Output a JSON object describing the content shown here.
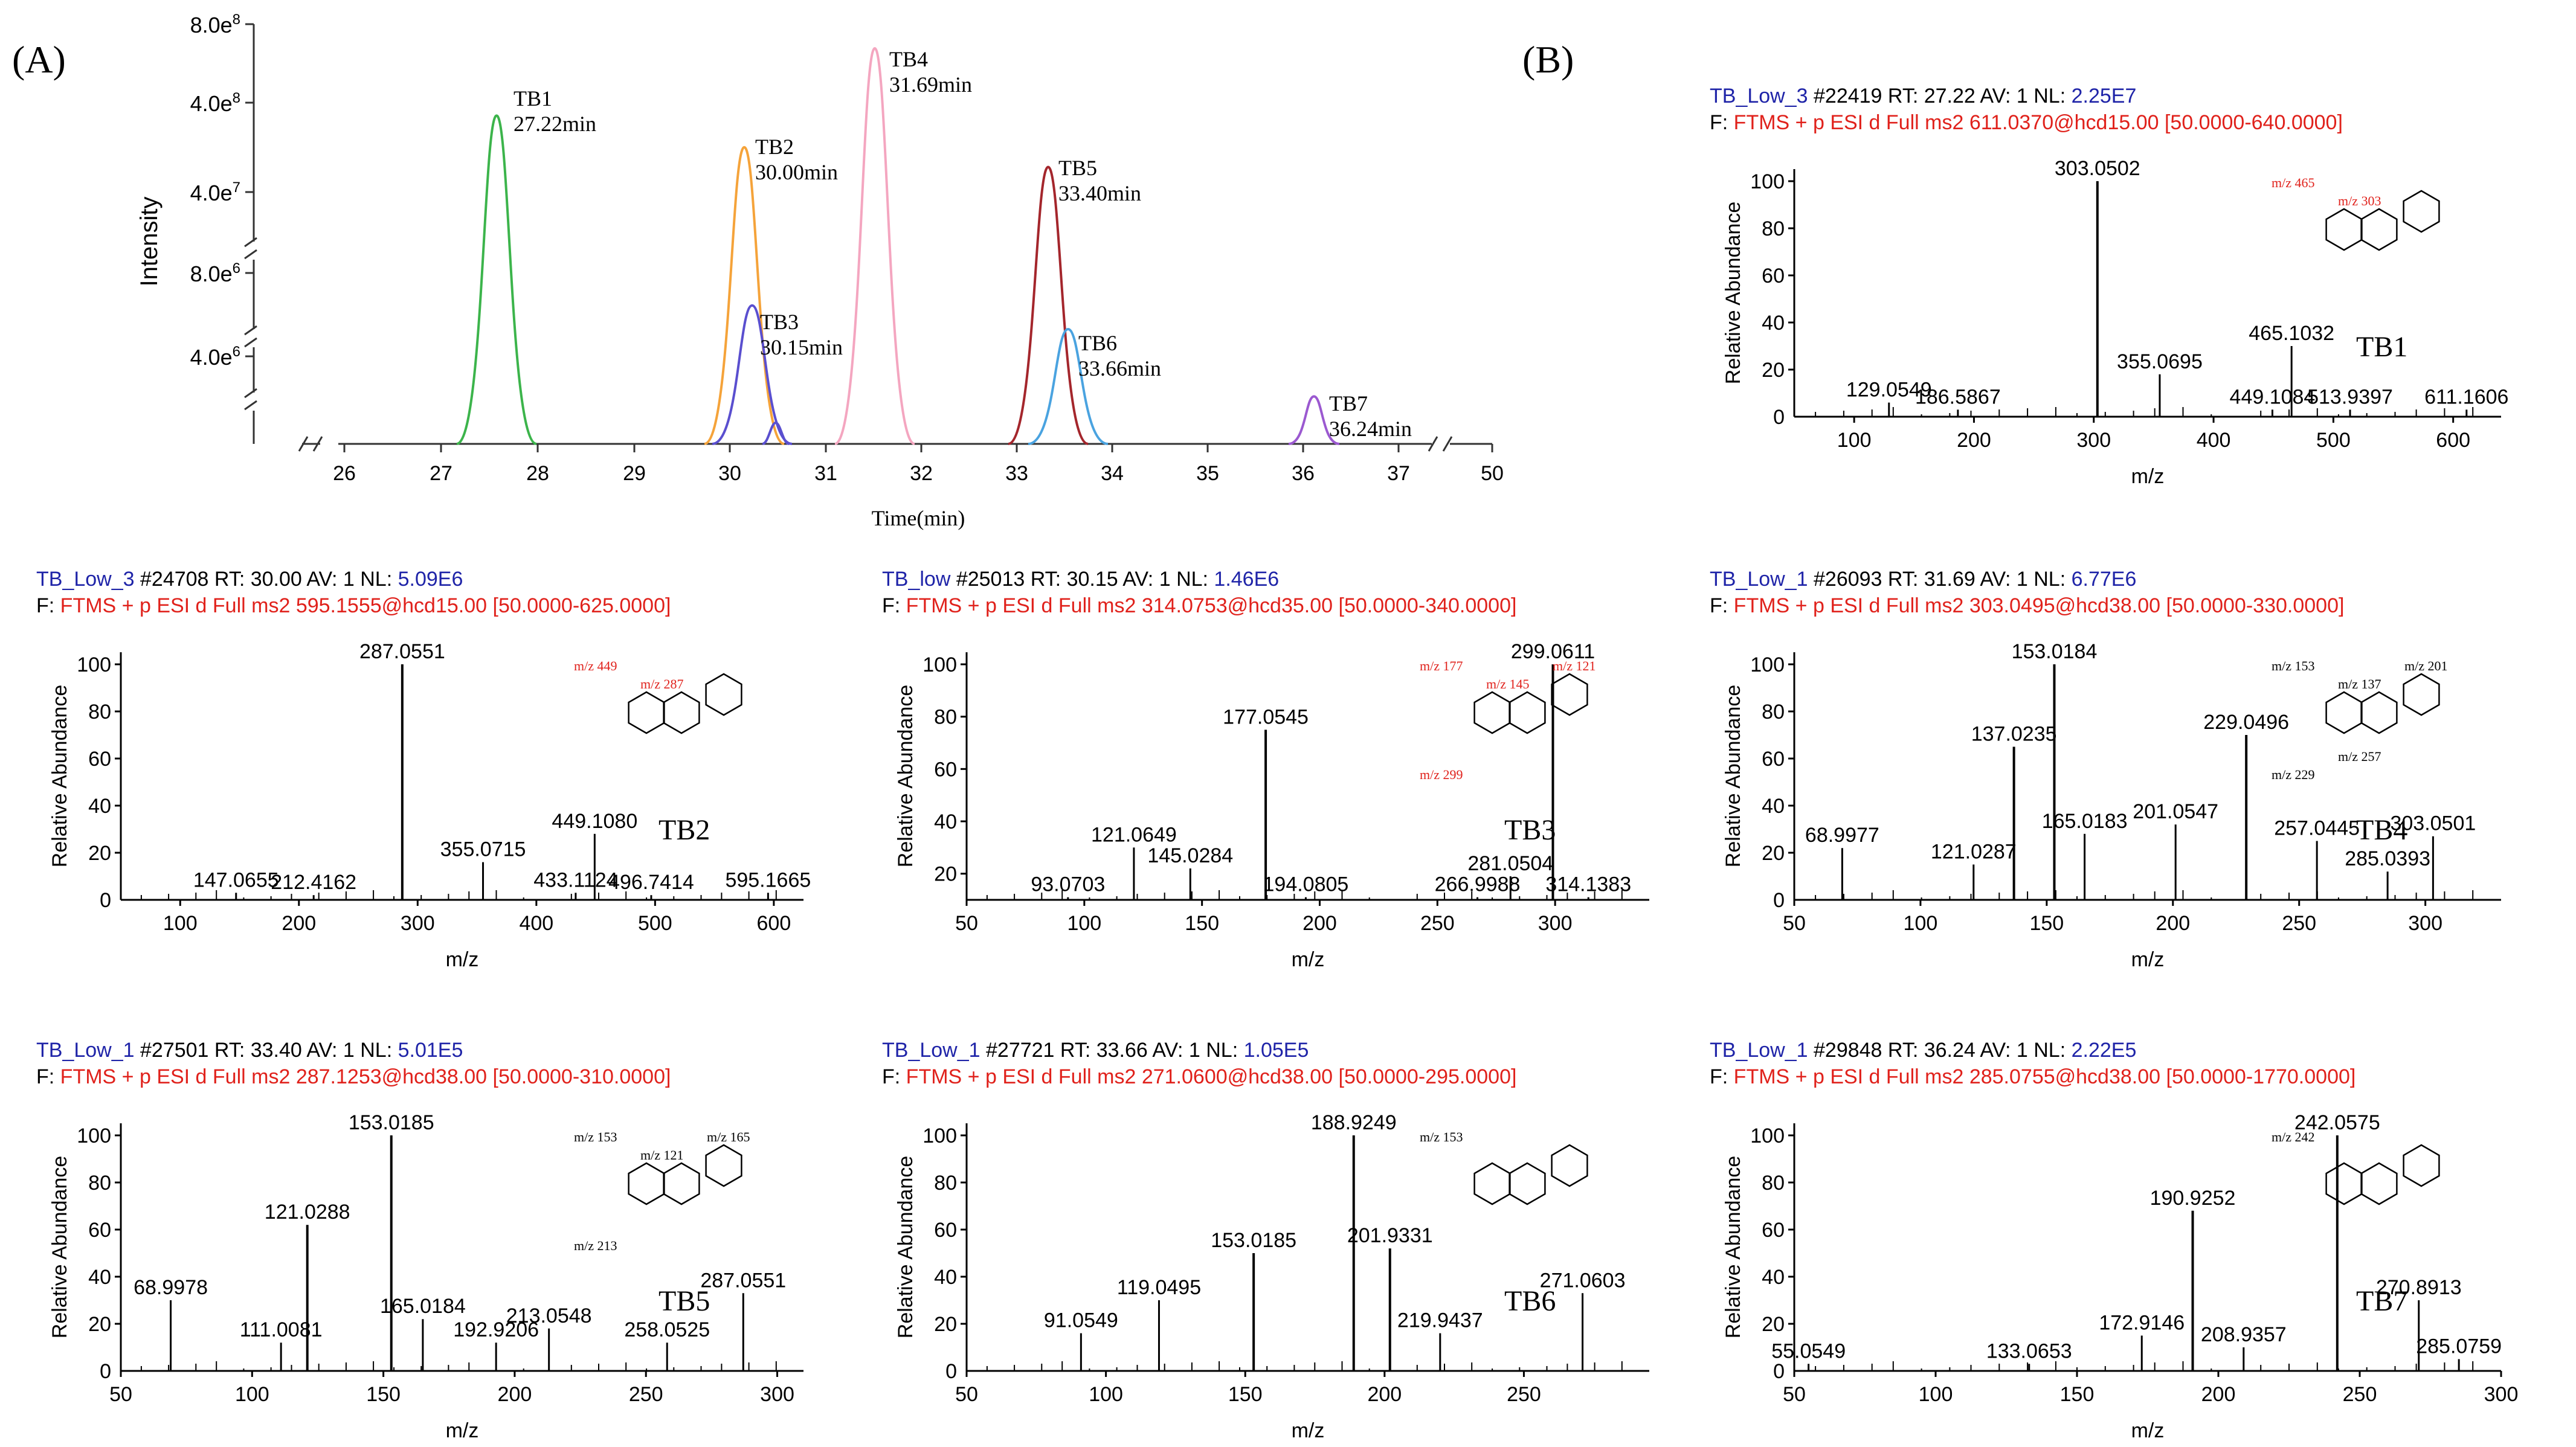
{
  "figure": {
    "panel_a_label": "(A)",
    "panel_b_label": "(B)"
  },
  "chart_data": [
    {
      "id": "A",
      "type": "line",
      "title": "",
      "xlabel": "Time(min)",
      "ylabel": "Intensity",
      "xlim": [
        25.5,
        50
      ],
      "x_ticks": [
        "26",
        "27",
        "28",
        "29",
        "30",
        "31",
        "32",
        "33",
        "34",
        "35",
        "36",
        "37",
        "50"
      ],
      "y_ticks": [
        "8.0e8",
        "4.0e8",
        "4.0e7",
        "8.0e6",
        "4.0e6"
      ],
      "series": [
        {
          "name": "TB1",
          "label_line2": "27.22min",
          "rt": 27.22,
          "peak_level": 0.83,
          "color": "#3cb44b"
        },
        {
          "name": "TB2",
          "label_line2": "30.00min",
          "rt": 30.0,
          "peak_level": 0.75,
          "color": "#f5a33a"
        },
        {
          "name": "TB3",
          "label_line2": "30.15min",
          "rt": 30.15,
          "peak_level": 0.35,
          "color": "#5a4fcf"
        },
        {
          "name": "TB4",
          "label_line2": "31.69min",
          "rt": 31.69,
          "peak_level": 1.0,
          "color": "#f4a6c0"
        },
        {
          "name": "TB5",
          "label_line2": "33.40min",
          "rt": 33.4,
          "peak_level": 0.7,
          "color": "#a4262c"
        },
        {
          "name": "TB6",
          "label_line2": "33.66min",
          "rt": 33.66,
          "peak_level": 0.29,
          "color": "#4aa3e0"
        },
        {
          "name": "TB7",
          "label_line2": "36.24min",
          "rt": 36.24,
          "peak_level": 0.12,
          "color": "#9b59d0"
        }
      ]
    },
    {
      "id": "TB1",
      "type": "bar",
      "compound": "TB1",
      "header_file": "TB_Low_3",
      "header_scan": "#22419",
      "header_rt": "RT: 27.22",
      "header_av": "AV: 1",
      "header_nl_label": "NL:",
      "header_nl": "2.25E7",
      "filter": "F: FTMS + p ESI d Full ms2 611.0370@hcd15.00 [50.0000-640.0000]",
      "xlabel": "m/z",
      "ylabel": "Relative Abundance",
      "xlim": [
        50,
        640
      ],
      "ylim": [
        0,
        100
      ],
      "x_ticks": [
        100,
        200,
        300,
        400,
        500,
        600
      ],
      "y_ticks": [
        20,
        40,
        60,
        80,
        100
      ],
      "peaks": [
        {
          "mz": 129.0549,
          "rel": 6,
          "label": "129.0549"
        },
        {
          "mz": 186.5867,
          "rel": 3,
          "label": "186.5867"
        },
        {
          "mz": 303.0502,
          "rel": 100,
          "label": "303.0502"
        },
        {
          "mz": 355.0695,
          "rel": 18,
          "label": "355.0695"
        },
        {
          "mz": 449.1084,
          "rel": 3,
          "label": "449.1084"
        },
        {
          "mz": 465.1032,
          "rel": 30,
          "label": "465.1032"
        },
        {
          "mz": 513.9397,
          "rel": 3,
          "label": "513.9397"
        },
        {
          "mz": 611.1606,
          "rel": 3,
          "label": "611.1606"
        }
      ],
      "fragments": [
        "m/z 465",
        "m/z 303"
      ]
    },
    {
      "id": "TB2",
      "type": "bar",
      "compound": "TB2",
      "header_file": "TB_Low_3",
      "header_scan": "#24708",
      "header_rt": "RT: 30.00",
      "header_av": "AV: 1",
      "header_nl_label": "NL:",
      "header_nl": "5.09E6",
      "filter": "F: FTMS + p ESI d Full ms2 595.1555@hcd15.00 [50.0000-625.0000]",
      "xlabel": "m/z",
      "ylabel": "Relative Abundance",
      "xlim": [
        50,
        625
      ],
      "ylim": [
        0,
        100
      ],
      "x_ticks": [
        100,
        200,
        300,
        400,
        500,
        600
      ],
      "y_ticks": [
        20,
        40,
        60,
        80,
        100
      ],
      "peaks": [
        {
          "mz": 147.0655,
          "rel": 3,
          "label": "147.0655"
        },
        {
          "mz": 212.4162,
          "rel": 2,
          "label": "212.4162"
        },
        {
          "mz": 287.0551,
          "rel": 100,
          "label": "287.0551"
        },
        {
          "mz": 355.0715,
          "rel": 16,
          "label": "355.0715"
        },
        {
          "mz": 433.1124,
          "rel": 3,
          "label": "433.1124"
        },
        {
          "mz": 449.108,
          "rel": 28,
          "label": "449.1080"
        },
        {
          "mz": 496.7414,
          "rel": 2,
          "label": "496.7414"
        },
        {
          "mz": 595.1665,
          "rel": 3,
          "label": "595.1665"
        }
      ],
      "fragments": [
        "m/z 449",
        "m/z 287"
      ]
    },
    {
      "id": "TB3",
      "type": "bar",
      "compound": "TB3",
      "header_file": "TB_low",
      "header_scan": "#25013",
      "header_rt": "RT: 30.15",
      "header_av": "AV: 1",
      "header_nl_label": "NL:",
      "header_nl": "1.46E6",
      "filter": "F: FTMS + p ESI d Full ms2 314.0753@hcd35.00 [50.0000-340.0000]",
      "xlabel": "m/z",
      "ylabel": "Relative Abundance",
      "xlim": [
        50,
        340
      ],
      "ylim": [
        10,
        100
      ],
      "x_ticks": [
        50,
        100,
        150,
        200,
        250,
        300
      ],
      "y_ticks": [
        20,
        40,
        60,
        80,
        100
      ],
      "peaks": [
        {
          "mz": 93.0703,
          "rel": 11,
          "label": "93.0703"
        },
        {
          "mz": 121.0649,
          "rel": 30,
          "label": "121.0649"
        },
        {
          "mz": 145.0284,
          "rel": 22,
          "label": "145.0284"
        },
        {
          "mz": 177.0545,
          "rel": 75,
          "label": "177.0545"
        },
        {
          "mz": 194.0805,
          "rel": 11,
          "label": "194.0805"
        },
        {
          "mz": 266.9988,
          "rel": 11,
          "label": "266.9988"
        },
        {
          "mz": 281.0504,
          "rel": 19,
          "label": "281.0504"
        },
        {
          "mz": 299.0611,
          "rel": 100,
          "label": "299.0611"
        },
        {
          "mz": 314.1383,
          "rel": 11,
          "label": "314.1383"
        }
      ],
      "fragments": [
        "m/z 177",
        "m/z 145",
        "m/z 121",
        "m/z 299"
      ]
    },
    {
      "id": "TB4",
      "type": "bar",
      "compound": "TB4",
      "header_file": "TB_Low_1",
      "header_scan": "#26093",
      "header_rt": "RT: 31.69",
      "header_av": "AV: 1",
      "header_nl_label": "NL:",
      "header_nl": "6.77E6",
      "filter": "F: FTMS + p ESI d Full ms2 303.0495@hcd38.00 [50.0000-330.0000]",
      "xlabel": "m/z",
      "ylabel": "Relative Abundance",
      "xlim": [
        50,
        330
      ],
      "ylim": [
        0,
        100
      ],
      "x_ticks": [
        50,
        100,
        150,
        200,
        250,
        300
      ],
      "y_ticks": [
        20,
        40,
        60,
        80,
        100
      ],
      "peaks": [
        {
          "mz": 68.9977,
          "rel": 22,
          "label": "68.9977"
        },
        {
          "mz": 121.0287,
          "rel": 15,
          "label": "121.0287"
        },
        {
          "mz": 137.0235,
          "rel": 65,
          "label": "137.0235"
        },
        {
          "mz": 153.0184,
          "rel": 100,
          "label": "153.0184"
        },
        {
          "mz": 165.0183,
          "rel": 28,
          "label": "165.0183"
        },
        {
          "mz": 201.0547,
          "rel": 32,
          "label": "201.0547"
        },
        {
          "mz": 229.0496,
          "rel": 70,
          "label": "229.0496"
        },
        {
          "mz": 257.0445,
          "rel": 25,
          "label": "257.0445"
        },
        {
          "mz": 285.0393,
          "rel": 12,
          "label": "285.0393"
        },
        {
          "mz": 303.0501,
          "rel": 27,
          "label": "303.0501"
        }
      ],
      "fragments": [
        "m/z 153",
        "m/z 137",
        "m/z 201",
        "m/z 229",
        "m/z 257"
      ]
    },
    {
      "id": "TB5",
      "type": "bar",
      "compound": "TB5",
      "header_file": "TB_Low_1",
      "header_scan": "#27501",
      "header_rt": "RT: 33.40",
      "header_av": "AV: 1",
      "header_nl_label": "NL:",
      "header_nl": "5.01E5",
      "filter": "F: FTMS + p ESI d Full ms2 287.1253@hcd38.00 [50.0000-310.0000]",
      "xlabel": "m/z",
      "ylabel": "Relative Abundance",
      "xlim": [
        50,
        310
      ],
      "ylim": [
        0,
        100
      ],
      "x_ticks": [
        50,
        100,
        150,
        200,
        250,
        300
      ],
      "y_ticks": [
        20,
        40,
        60,
        80,
        100
      ],
      "peaks": [
        {
          "mz": 68.9978,
          "rel": 30,
          "label": "68.9978"
        },
        {
          "mz": 111.0081,
          "rel": 12,
          "label": "111.0081"
        },
        {
          "mz": 121.0288,
          "rel": 62,
          "label": "121.0288"
        },
        {
          "mz": 153.0185,
          "rel": 100,
          "label": "153.0185"
        },
        {
          "mz": 165.0184,
          "rel": 22,
          "label": "165.0184"
        },
        {
          "mz": 192.9206,
          "rel": 12,
          "label": "192.9206"
        },
        {
          "mz": 213.0548,
          "rel": 18,
          "label": "213.0548"
        },
        {
          "mz": 258.0525,
          "rel": 12,
          "label": "258.0525"
        },
        {
          "mz": 287.0551,
          "rel": 33,
          "label": "287.0551"
        }
      ],
      "fragments": [
        "m/z 153",
        "m/z 121",
        "m/z 165",
        "m/z 213"
      ]
    },
    {
      "id": "TB6",
      "type": "bar",
      "compound": "TB6",
      "header_file": "TB_Low_1",
      "header_scan": "#27721",
      "header_rt": "RT: 33.66",
      "header_av": "AV: 1",
      "header_nl_label": "NL:",
      "header_nl": "1.05E5",
      "filter": "F: FTMS + p ESI d Full ms2 271.0600@hcd38.00 [50.0000-295.0000]",
      "xlabel": "m/z",
      "ylabel": "Relative Abundance",
      "xlim": [
        50,
        295
      ],
      "ylim": [
        0,
        100
      ],
      "x_ticks": [
        50,
        100,
        150,
        200,
        250
      ],
      "y_ticks": [
        20,
        40,
        60,
        80,
        100
      ],
      "peaks": [
        {
          "mz": 91.0549,
          "rel": 16,
          "label": "91.0549"
        },
        {
          "mz": 119.0495,
          "rel": 30,
          "label": "119.0495"
        },
        {
          "mz": 153.0185,
          "rel": 50,
          "label": "153.0185"
        },
        {
          "mz": 188.9249,
          "rel": 100,
          "label": "188.9249"
        },
        {
          "mz": 201.9331,
          "rel": 52,
          "label": "201.9331"
        },
        {
          "mz": 219.9437,
          "rel": 16,
          "label": "219.9437"
        },
        {
          "mz": 271.0603,
          "rel": 33,
          "label": "271.0603"
        }
      ],
      "fragments": [
        "m/z 153"
      ]
    },
    {
      "id": "TB7",
      "type": "bar",
      "compound": "TB7",
      "header_file": "TB_Low_1",
      "header_scan": "#29848",
      "header_rt": "RT: 36.24",
      "header_av": "AV: 1",
      "header_nl_label": "NL:",
      "header_nl": "2.22E5",
      "filter": "F: FTMS + p ESI d Full ms2 285.0755@hcd38.00 [50.0000-1770.0000]",
      "xlabel": "m/z",
      "ylabel": "Relative Abundance",
      "xlim": [
        50,
        300
      ],
      "ylim": [
        0,
        100
      ],
      "x_ticks": [
        50,
        100,
        150,
        200,
        250,
        300
      ],
      "y_ticks": [
        20,
        40,
        60,
        80,
        100
      ],
      "peaks": [
        {
          "mz": 55.0549,
          "rel": 3,
          "label": "55.0549"
        },
        {
          "mz": 133.0653,
          "rel": 3,
          "label": "133.0653"
        },
        {
          "mz": 172.9146,
          "rel": 15,
          "label": "172.9146"
        },
        {
          "mz": 190.9252,
          "rel": 68,
          "label": "190.9252"
        },
        {
          "mz": 208.9357,
          "rel": 10,
          "label": "208.9357"
        },
        {
          "mz": 242.0575,
          "rel": 100,
          "label": "242.0575"
        },
        {
          "mz": 270.8913,
          "rel": 30,
          "label": "270.8913"
        },
        {
          "mz": 285.0759,
          "rel": 5,
          "label": "285.0759"
        }
      ],
      "fragments": [
        "m/z 242"
      ]
    }
  ]
}
